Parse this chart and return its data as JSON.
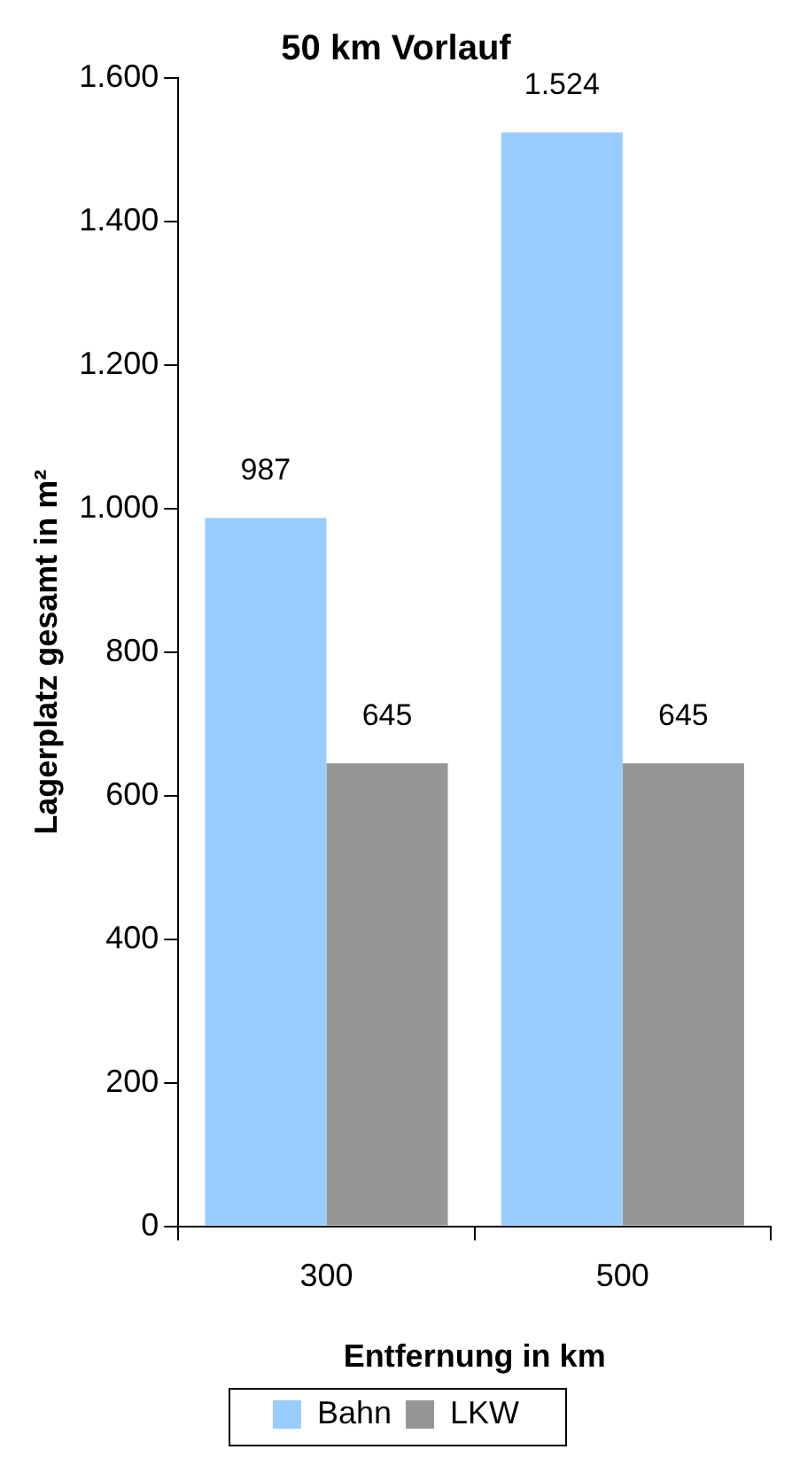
{
  "chart_data": {
    "type": "bar",
    "title": "50 km Vorlauf",
    "xlabel": "Entfernung in km",
    "ylabel": "Lagerplatz gesamt in m²",
    "categories": [
      "300",
      "500"
    ],
    "series": [
      {
        "name": "Bahn",
        "color": "#99ccff",
        "values": [
          987,
          1524
        ],
        "value_labels": [
          "987",
          "1.524"
        ]
      },
      {
        "name": "LKW",
        "color": "#969696",
        "values": [
          645,
          645
        ],
        "value_labels": [
          "645",
          "645"
        ]
      }
    ],
    "ylim": [
      0,
      1600
    ],
    "yticks": [
      0,
      {
        "value": 200,
        "label": "200"
      },
      {
        "value": 400,
        "label": "400"
      },
      {
        "value": 600,
        "label": "600"
      },
      {
        "value": 800,
        "label": "800"
      },
      {
        "value": 1000,
        "label": "1.000"
      },
      {
        "value": 1200,
        "label": "1.200"
      },
      {
        "value": 1400,
        "label": "1.400"
      },
      {
        "value": 1600,
        "label": "1.600"
      }
    ],
    "grid": false,
    "legend": "bottom"
  }
}
